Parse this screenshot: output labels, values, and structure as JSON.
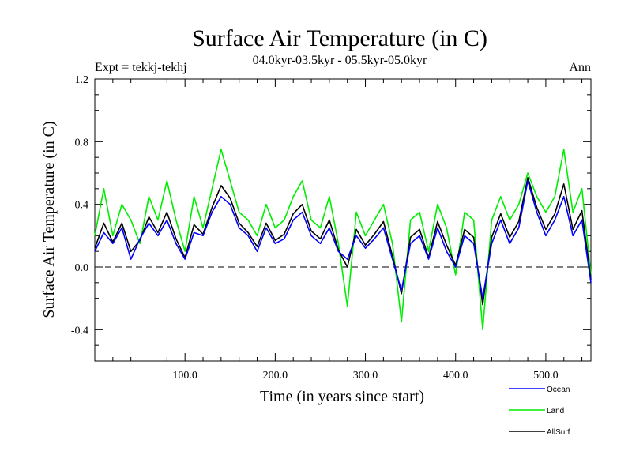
{
  "header": {
    "title": "Surface Air Temperature (in C)",
    "subtitle": "04.0kyr-03.5kyr - 05.5kyr-05.0kyr",
    "experiment": "Expt = tekkj-tekhj",
    "season": "Ann"
  },
  "chart_data": {
    "type": "line",
    "title": "Surface Air Temperature (in C)",
    "subtitle": "04.0kyr-03.5kyr - 05.5kyr-05.0kyr",
    "xlabel": "Time (in years since start)",
    "ylabel": "Surface Air Temperature (in C)",
    "xlim": [
      0,
      550
    ],
    "ylim": [
      -0.6,
      1.2
    ],
    "xticks": [
      100,
      200,
      300,
      400,
      500
    ],
    "xtick_labels": [
      "100.0",
      "200.0",
      "300.0",
      "400.0",
      "500.0"
    ],
    "yticks": [
      -0.4,
      0.0,
      0.4,
      0.8,
      1.2
    ],
    "ytick_labels": [
      "-0.4",
      "0.0",
      "0.4",
      "0.8",
      "1.2"
    ],
    "reference_line": 0.0,
    "legend_position": "bottom-right, below plot",
    "x": [
      0,
      10,
      20,
      30,
      40,
      50,
      60,
      70,
      80,
      90,
      100,
      110,
      120,
      130,
      140,
      150,
      160,
      170,
      180,
      190,
      200,
      210,
      220,
      230,
      240,
      250,
      260,
      270,
      280,
      290,
      300,
      310,
      320,
      330,
      340,
      350,
      360,
      370,
      380,
      390,
      400,
      410,
      420,
      430,
      440,
      450,
      460,
      470,
      480,
      490,
      500,
      510,
      520,
      530,
      540,
      550
    ],
    "series": [
      {
        "name": "Ocean",
        "color": "#0000ff",
        "values": [
          0.1,
          0.22,
          0.15,
          0.25,
          0.05,
          0.18,
          0.28,
          0.2,
          0.3,
          0.15,
          0.05,
          0.22,
          0.2,
          0.35,
          0.45,
          0.4,
          0.25,
          0.2,
          0.1,
          0.25,
          0.15,
          0.18,
          0.3,
          0.35,
          0.2,
          0.15,
          0.25,
          0.1,
          0.05,
          0.2,
          0.12,
          0.18,
          0.25,
          0.05,
          -0.15,
          0.15,
          0.2,
          0.05,
          0.25,
          0.1,
          0.0,
          0.2,
          0.15,
          -0.2,
          0.15,
          0.3,
          0.15,
          0.25,
          0.55,
          0.35,
          0.2,
          0.3,
          0.45,
          0.2,
          0.3,
          -0.1
        ]
      },
      {
        "name": "Land",
        "color": "#00ee00",
        "values": [
          0.2,
          0.5,
          0.2,
          0.4,
          0.3,
          0.15,
          0.45,
          0.3,
          0.55,
          0.3,
          0.1,
          0.45,
          0.25,
          0.5,
          0.75,
          0.55,
          0.35,
          0.3,
          0.2,
          0.4,
          0.25,
          0.3,
          0.45,
          0.55,
          0.3,
          0.25,
          0.45,
          0.15,
          -0.25,
          0.35,
          0.2,
          0.3,
          0.4,
          0.15,
          -0.35,
          0.3,
          0.35,
          0.1,
          0.4,
          0.25,
          -0.05,
          0.35,
          0.3,
          -0.4,
          0.3,
          0.45,
          0.3,
          0.4,
          0.6,
          0.45,
          0.35,
          0.45,
          0.75,
          0.35,
          0.5,
          -0.05
        ]
      },
      {
        "name": "AllSurf",
        "color": "#000000",
        "values": [
          0.12,
          0.28,
          0.16,
          0.28,
          0.1,
          0.17,
          0.32,
          0.22,
          0.35,
          0.18,
          0.06,
          0.27,
          0.21,
          0.38,
          0.52,
          0.44,
          0.28,
          0.22,
          0.13,
          0.28,
          0.17,
          0.21,
          0.34,
          0.4,
          0.23,
          0.18,
          0.3,
          0.11,
          0.0,
          0.24,
          0.14,
          0.21,
          0.29,
          0.07,
          -0.17,
          0.19,
          0.24,
          0.06,
          0.29,
          0.14,
          0.01,
          0.24,
          0.19,
          -0.24,
          0.19,
          0.34,
          0.19,
          0.29,
          0.57,
          0.38,
          0.24,
          0.34,
          0.53,
          0.24,
          0.36,
          -0.08
        ]
      }
    ]
  }
}
